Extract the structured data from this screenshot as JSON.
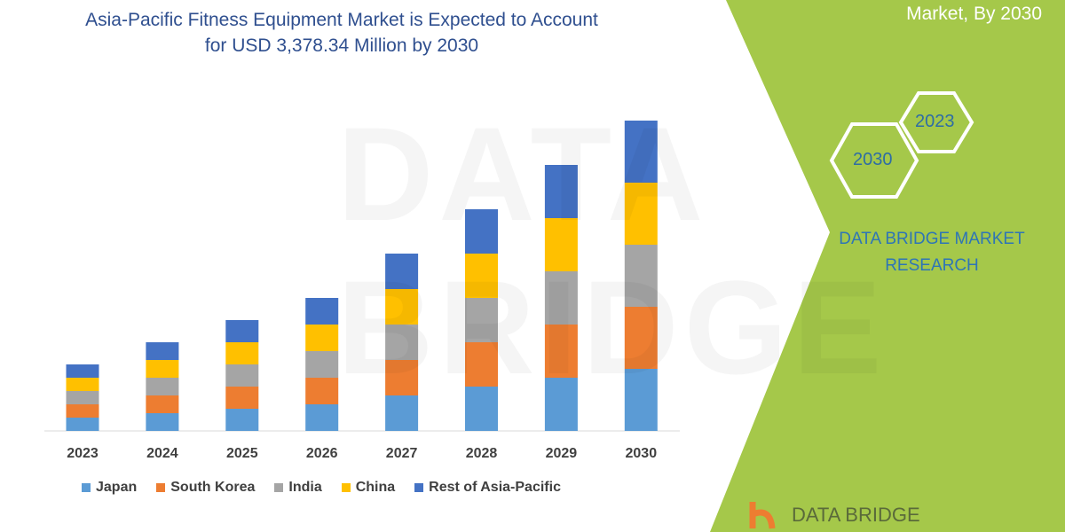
{
  "title_line1": "Asia-Pacific Fitness Equipment Market is Expected to Account",
  "title_line2": "for USD 3,378.34 Million by 2030",
  "side_panel": {
    "title_partial": "Market, By 2030",
    "hex_labels": [
      "2023",
      "2030"
    ],
    "brand_line1": "DATA BRIDGE MARKET",
    "brand_line2": "RESEARCH",
    "logo_text": "DATA BRIDGE",
    "watermark": "DATA BRIDGE",
    "panel_color": "#a5c84a"
  },
  "chart_data": {
    "type": "bar",
    "stacked": true,
    "categories": [
      "2023",
      "2024",
      "2025",
      "2026",
      "2027",
      "2028",
      "2029",
      "2030"
    ],
    "series": [
      {
        "name": "Japan",
        "color": "#5b9bd5",
        "values": [
          15,
          20,
          25,
          30,
          40,
          50,
          60,
          70
        ]
      },
      {
        "name": "South Korea",
        "color": "#ed7d31",
        "values": [
          15,
          20,
          25,
          30,
          40,
          50,
          60,
          70
        ]
      },
      {
        "name": "India",
        "color": "#a5a5a5",
        "values": [
          15,
          20,
          25,
          30,
          40,
          50,
          60,
          70
        ]
      },
      {
        "name": "China",
        "color": "#ffc000",
        "values": [
          15,
          20,
          25,
          30,
          40,
          50,
          60,
          70
        ]
      },
      {
        "name": "Rest of Asia-Pacific",
        "color": "#4472c4",
        "values": [
          15,
          20,
          25,
          30,
          40,
          50,
          60,
          70
        ]
      }
    ],
    "ylim": [
      0,
      350
    ],
    "y_axis_shown": false,
    "grid": false,
    "legend": "bottom"
  }
}
